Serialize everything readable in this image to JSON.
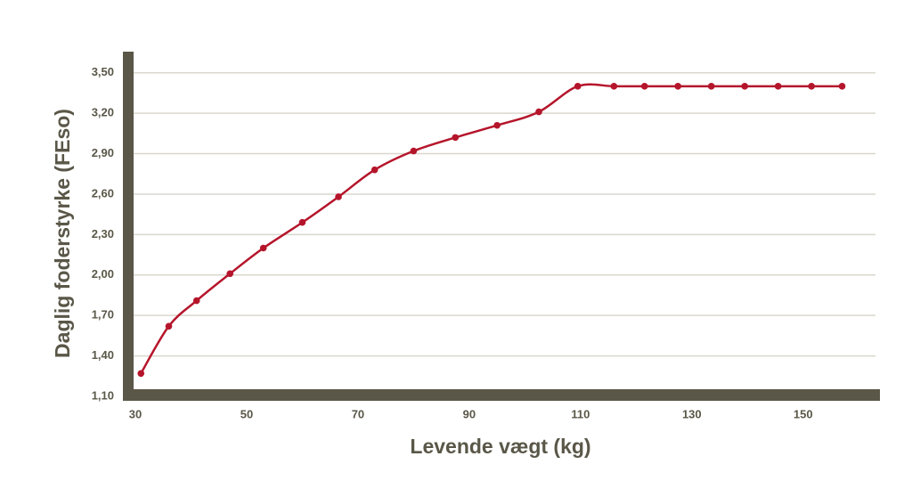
{
  "chart_data": {
    "type": "line",
    "x_label": "Levende vægt (kg)",
    "y_label": "Daglig foderstyrke (FEso)",
    "x": [
      31,
      36,
      41,
      47,
      53,
      60,
      66.5,
      73,
      80,
      87.5,
      95,
      102.5,
      109.5,
      116,
      121.5,
      127.5,
      133.5,
      139.5,
      145.5,
      151.5,
      157
    ],
    "series": [
      {
        "name": "Daglig foderstyrke",
        "color": "#b5152b",
        "values": [
          1.27,
          1.62,
          1.81,
          2.01,
          2.2,
          2.39,
          2.58,
          2.78,
          2.92,
          3.02,
          3.11,
          3.21,
          3.4,
          3.4,
          3.4,
          3.4,
          3.4,
          3.4,
          3.4,
          3.4,
          3.4
        ]
      }
    ],
    "xlim": [
      30,
      163
    ],
    "xticks": [
      30,
      50,
      70,
      90,
      110,
      130,
      150
    ],
    "ylim": [
      1.1,
      3.65
    ],
    "yticks": [
      {
        "value": 1.1,
        "label": "1,10"
      },
      {
        "value": 1.4,
        "label": "1,40"
      },
      {
        "value": 1.7,
        "label": "1,70"
      },
      {
        "value": 2.0,
        "label": "2,00"
      },
      {
        "value": 2.3,
        "label": "2,30"
      },
      {
        "value": 2.6,
        "label": "2,60"
      },
      {
        "value": 2.9,
        "label": "2,90"
      },
      {
        "value": 3.2,
        "label": "3,20"
      },
      {
        "value": 3.5,
        "label": "3,50"
      }
    ],
    "grid": true
  }
}
